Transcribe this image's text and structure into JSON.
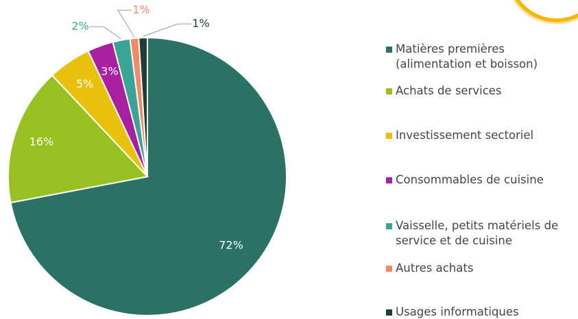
{
  "chart_data": {
    "type": "pie",
    "categories": [
      "Matières premières (alimentation et boisson)",
      "Achats de services",
      "Investissement sectoriel",
      "Consommables de cuisine",
      "Vaisselle, petits matériels de service et de cuisine",
      "Autres achats",
      "Usages informatiques"
    ],
    "values": [
      72,
      16,
      5,
      3,
      2,
      1,
      1
    ],
    "value_labels": [
      "72%",
      "16%",
      "5%",
      "3%",
      "2%",
      "1%",
      "1%"
    ],
    "colors": [
      "#2a7265",
      "#97c11f",
      "#e8c10a",
      "#a8209f",
      "#3aa595",
      "#f28a6a",
      "#1d3d35"
    ],
    "legend": "right"
  }
}
